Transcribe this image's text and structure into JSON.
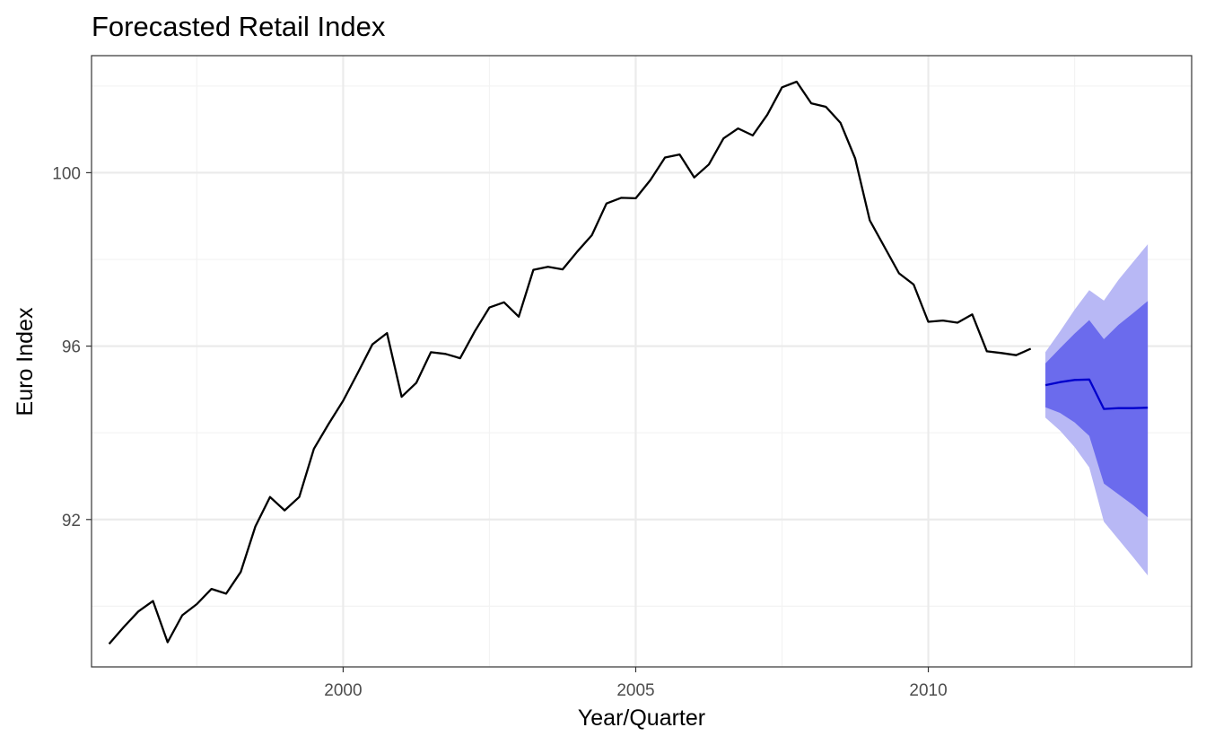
{
  "chart_data": {
    "type": "line",
    "title": "Forecasted Retail Index",
    "xlabel": "Year/Quarter",
    "ylabel": "Euro Index",
    "xlim": [
      1995.7,
      2014.5
    ],
    "ylim": [
      88.6,
      102.7
    ],
    "x_ticks": [
      2000,
      2005,
      2010
    ],
    "x_minor_ticks": [
      1997.5,
      2002.5,
      2007.5,
      2012.5
    ],
    "y_ticks": [
      92,
      96,
      100
    ],
    "y_minor_ticks": [
      90,
      94,
      98,
      102
    ],
    "grid": true,
    "series": [
      {
        "x": [
          1996.0,
          1996.25,
          1996.5,
          1996.75,
          1997.0,
          1997.25,
          1997.5,
          1997.75,
          1998.0,
          1998.25,
          1998.5,
          1998.75,
          1999.0,
          1999.25,
          1999.5,
          1999.75,
          2000.0,
          2000.25,
          2000.5,
          2000.75,
          2001.0,
          2001.25,
          2001.5,
          2001.75,
          2002.0,
          2002.25,
          2002.5,
          2002.75,
          2003.0,
          2003.25,
          2003.5,
          2003.75,
          2004.0,
          2004.25,
          2004.5,
          2004.75,
          2005.0,
          2005.25,
          2005.5,
          2005.75,
          2006.0,
          2006.25,
          2006.5,
          2006.75,
          2007.0,
          2007.25,
          2007.5,
          2007.75,
          2008.0,
          2008.25,
          2008.5,
          2008.75,
          2009.0,
          2009.25,
          2009.5,
          2009.75,
          2010.0,
          2010.25,
          2010.5,
          2010.75,
          2011.0,
          2011.25,
          2011.5,
          2011.75
        ],
        "values": [
          89.13,
          89.52,
          89.88,
          90.12,
          89.17,
          89.79,
          90.05,
          90.4,
          90.29,
          90.79,
          91.84,
          92.52,
          92.21,
          92.52,
          93.63,
          94.2,
          94.74,
          95.38,
          96.04,
          96.3,
          94.83,
          95.15,
          95.86,
          95.82,
          95.72,
          96.34,
          96.89,
          97.01,
          96.68,
          97.76,
          97.83,
          97.77,
          98.18,
          98.56,
          99.29,
          99.42,
          99.41,
          99.83,
          100.35,
          100.42,
          99.89,
          100.19,
          100.79,
          101.02,
          100.86,
          101.34,
          101.97,
          102.1,
          101.6,
          101.52,
          101.15,
          100.33,
          98.9,
          98.29,
          97.68,
          97.42,
          96.56,
          96.59,
          96.54,
          96.73,
          95.88,
          95.84,
          95.79,
          95.94
        ]
      },
      {
        "x": [
          2012.0,
          2012.25,
          2012.5,
          2012.75,
          2013.0,
          2013.25,
          2013.5,
          2013.75
        ],
        "values": [
          95.1,
          95.17,
          95.22,
          95.23,
          94.55,
          94.57,
          94.57,
          94.58
        ],
        "lo80": [
          94.59,
          94.46,
          94.24,
          93.93,
          92.83,
          92.58,
          92.33,
          92.05
        ],
        "hi80": [
          95.6,
          95.95,
          96.29,
          96.6,
          96.16,
          96.49,
          96.76,
          97.04
        ],
        "lo95": [
          94.35,
          94.05,
          93.67,
          93.2,
          91.95,
          91.54,
          91.13,
          90.71
        ],
        "hi95": [
          95.86,
          96.34,
          96.84,
          97.29,
          97.05,
          97.53,
          97.94,
          98.35
        ]
      }
    ],
    "colors": {
      "history_line": "#000000",
      "forecast_line": "#0000cc",
      "band80": "#6b6bed",
      "band95": "#b8b8f5",
      "grid_major": "#ebebeb",
      "grid_minor": "#f3f3f3",
      "panel_border": "#333333"
    }
  }
}
